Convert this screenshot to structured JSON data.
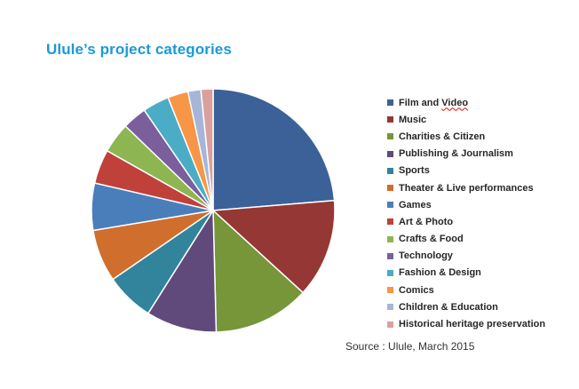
{
  "page": {
    "title": "Ulule’s project categories",
    "source": "Source : Ulule, March 2015"
  },
  "chart_data": {
    "type": "pie",
    "title": "Ulule’s project categories",
    "legend_position": "right",
    "categories": [
      "Film and Video",
      "Music",
      "Charities & Citizen",
      "Publishing & Journalism",
      "Sports",
      "Theater & Live performances",
      "Games",
      "Art & Photo",
      "Crafts & Food",
      "Technology",
      "Fashion & Design",
      "Comics",
      "Children & Education",
      "Historical heritage preservation"
    ],
    "values": [
      23.5,
      13.0,
      12.7,
      9.3,
      6.4,
      6.9,
      6.2,
      4.5,
      4.0,
      3.2,
      3.5,
      2.7,
      1.7,
      1.6
    ],
    "unit": "%",
    "colors": [
      "#3b6198",
      "#953734",
      "#779539",
      "#604a7b",
      "#31849b",
      "#cf6e2d",
      "#4a7ebb",
      "#c0413a",
      "#8db552",
      "#7a5f9c",
      "#4bacc6",
      "#f79646",
      "#a5b6d8",
      "#d9a09e",
      "#c4d59b"
    ]
  }
}
